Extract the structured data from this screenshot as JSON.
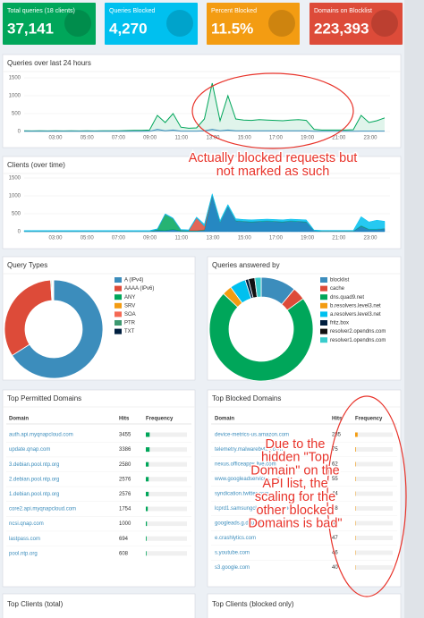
{
  "stats": [
    {
      "label": "Total queries (18 clients)",
      "value": "37,141",
      "color": "#00a65a"
    },
    {
      "label": "Queries Blocked",
      "value": "4,270",
      "color": "#00c0ef"
    },
    {
      "label": "Percent Blocked",
      "value": "11.5%",
      "color": "#f39c12"
    },
    {
      "label": "Domains on Blocklist",
      "value": "223,393",
      "color": "#dd4b39"
    }
  ],
  "queries_chart": {
    "title": "Queries over last 24 hours",
    "ylim": [
      0,
      1500
    ],
    "yticks": [
      0,
      500,
      1000,
      1500
    ],
    "x_labels": [
      "03:00",
      "05:00",
      "07:00",
      "09:00",
      "11:00",
      "13:00",
      "15:00",
      "17:00",
      "19:00",
      "21:00",
      "23:00"
    ],
    "total": {
      "color": "#00a65a",
      "values": [
        20,
        15,
        20,
        15,
        20,
        15,
        20,
        15,
        20,
        15,
        20,
        20,
        20,
        25,
        30,
        30,
        40,
        450,
        250,
        500,
        120,
        90,
        100,
        350,
        1350,
        300,
        1000,
        350,
        320,
        310,
        330,
        320,
        310,
        300,
        320,
        330,
        310,
        60,
        40,
        40,
        40,
        40,
        50,
        450,
        250,
        300,
        380
      ]
    },
    "blocked": {
      "color": "#3c8dbc",
      "values": [
        5,
        5,
        5,
        5,
        5,
        5,
        5,
        5,
        5,
        5,
        5,
        5,
        5,
        5,
        5,
        5,
        5,
        60,
        20,
        40,
        10,
        10,
        10,
        20,
        60,
        20,
        40,
        20,
        20,
        20,
        20,
        20,
        20,
        20,
        20,
        20,
        20,
        5,
        5,
        5,
        5,
        5,
        5,
        10,
        10,
        10,
        10
      ]
    }
  },
  "clients_chart": {
    "title": "Clients (over time)",
    "ylim": [
      0,
      1500
    ],
    "yticks": [
      0,
      500,
      1000,
      1500
    ],
    "x_labels": [
      "03:00",
      "05:00",
      "07:00",
      "09:00",
      "11:00",
      "13:00",
      "15:00",
      "17:00",
      "19:00",
      "21:00",
      "23:00"
    ],
    "series": [
      {
        "color": "#0073b7",
        "values": [
          5,
          5,
          5,
          5,
          5,
          5,
          5,
          5,
          5,
          5,
          5,
          5,
          5,
          5,
          5,
          5,
          5,
          40,
          30,
          60,
          20,
          20,
          20,
          40,
          1000,
          250,
          700,
          300,
          280,
          270,
          280,
          290,
          280,
          270,
          290,
          280,
          270,
          20,
          10,
          10,
          10,
          10,
          10,
          150,
          60,
          60,
          80
        ]
      },
      {
        "color": "#00a65a",
        "values": [
          5,
          5,
          5,
          5,
          5,
          5,
          5,
          5,
          5,
          5,
          5,
          5,
          5,
          5,
          5,
          5,
          5,
          20,
          450,
          300,
          20,
          10,
          10,
          10,
          10,
          10,
          10,
          10,
          10,
          10,
          10,
          10,
          10,
          10,
          10,
          10,
          10,
          5,
          5,
          5,
          5,
          5,
          5,
          20,
          10,
          10,
          10
        ]
      },
      {
        "color": "#dd4b39",
        "values": [
          0,
          0,
          0,
          0,
          0,
          0,
          0,
          0,
          0,
          0,
          0,
          0,
          0,
          0,
          0,
          0,
          0,
          0,
          0,
          0,
          0,
          0,
          350,
          100,
          0,
          0,
          0,
          0,
          0,
          0,
          0,
          0,
          0,
          0,
          0,
          0,
          0,
          0,
          0,
          0,
          0,
          0,
          0,
          0,
          0,
          0,
          0
        ]
      },
      {
        "color": "#00c0ef",
        "values": [
          20,
          20,
          20,
          20,
          20,
          20,
          20,
          20,
          20,
          20,
          20,
          20,
          20,
          20,
          20,
          20,
          20,
          20,
          20,
          20,
          20,
          20,
          30,
          60,
          50,
          50,
          50,
          50,
          50,
          50,
          50,
          50,
          50,
          50,
          50,
          50,
          50,
          20,
          20,
          20,
          20,
          20,
          20,
          250,
          200,
          250,
          200
        ]
      }
    ]
  },
  "query_types": {
    "title": "Query Types",
    "items": [
      {
        "name": "A (IPv4)",
        "color": "#3c8dbc",
        "value": 66
      },
      {
        "name": "AAAA (IPv6)",
        "color": "#dd4b39",
        "value": 33
      },
      {
        "name": "ANY",
        "color": "#00a65a",
        "value": 0.3
      },
      {
        "name": "SRV",
        "color": "#f39c12",
        "value": 0.2
      },
      {
        "name": "SOA",
        "color": "#f56954",
        "value": 0.2
      },
      {
        "name": "PTR",
        "color": "#3d9970",
        "value": 0.2
      },
      {
        "name": "TXT",
        "color": "#001f3f",
        "value": 0.1
      }
    ]
  },
  "answered_by": {
    "title": "Queries answered by",
    "items": [
      {
        "name": "blocklist",
        "color": "#3c8dbc",
        "value": 11
      },
      {
        "name": "cache",
        "color": "#dd4b39",
        "value": 4
      },
      {
        "name": "dns.quad9.net",
        "color": "#00a65a",
        "value": 72
      },
      {
        "name": "b.resolvers.level3.net",
        "color": "#f39c12",
        "value": 3
      },
      {
        "name": "a.resolvers.level3.net",
        "color": "#00c0ef",
        "value": 5
      },
      {
        "name": "fritz.box",
        "color": "#001f3f",
        "value": 1
      },
      {
        "name": "resolver2.opendns.com",
        "color": "#111111",
        "value": 2
      },
      {
        "name": "resolver1.opendns.com",
        "color": "#39cccc",
        "value": 2
      }
    ]
  },
  "top_permitted": {
    "title": "Top Permitted Domains",
    "headers": [
      "Domain",
      "Hits",
      "Frequency"
    ],
    "rows": [
      [
        "auth.api.myqnapcloud.com",
        3455
      ],
      [
        "update.qnap.com",
        3386
      ],
      [
        "3.debian.pool.ntp.org",
        2580
      ],
      [
        "2.debian.pool.ntp.org",
        2576
      ],
      [
        "1.debian.pool.ntp.org",
        2576
      ],
      [
        "core2.api.myqnapcloud.com",
        1754
      ],
      [
        "ncsi.qnap.com",
        1000
      ],
      [
        "lastpass.com",
        694
      ],
      [
        "pool.ntp.org",
        608
      ]
    ]
  },
  "top_blocked": {
    "title": "Top Blocked Domains",
    "headers": [
      "Domain",
      "Hits",
      "Frequency"
    ],
    "rows": [
      [
        "device-metrics-us.amazon.com",
        285
      ],
      [
        "telemetry.malwarebytes.com",
        75
      ],
      [
        "nexus.officeapps.live.com",
        62
      ],
      [
        "www.googleadservices.com",
        55
      ],
      [
        "syndication.twitter.com",
        44
      ],
      [
        "lcprd1.samsungcloudsolution.net",
        48
      ],
      [
        "googleads.g.doubleclick.net",
        47
      ],
      [
        "e.crashlytics.com",
        47
      ],
      [
        "s.youtube.com",
        46
      ],
      [
        "s3.google.com",
        40
      ]
    ]
  },
  "bottom_panels": [
    "Top Clients (total)",
    "Top Clients (blocked only)"
  ],
  "annotations": {
    "chart": [
      "Actually blocked requests but",
      "not marked as such"
    ],
    "table": [
      "Due to the",
      "hidden \"Top",
      "Domain\" on the",
      "API list, the",
      "scaling for the",
      "other blocked",
      "Domains is bad\""
    ]
  }
}
